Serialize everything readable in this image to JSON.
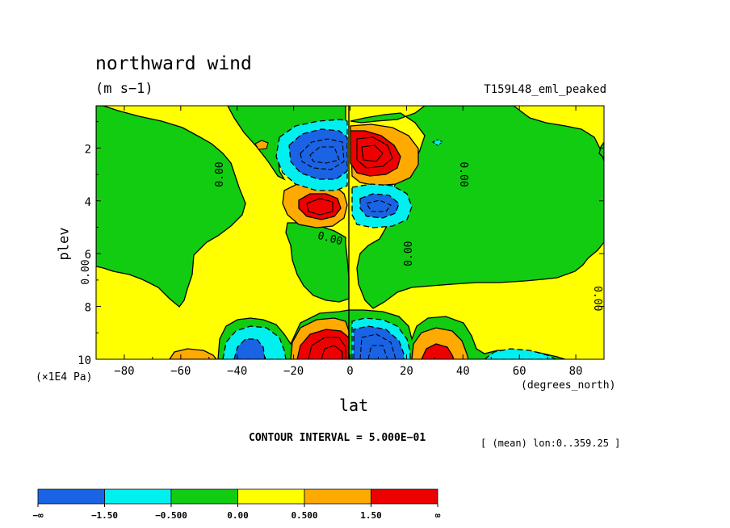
{
  "title": "northward wind",
  "units": "(m s−1)",
  "experiment": "T159L48_eml_peaked",
  "chart_data": {
    "type": "contour",
    "variable": "northward wind",
    "units": "m s-1",
    "xlabel": "lat",
    "xunits": "(degrees_north)",
    "ylabel": "plev",
    "yunits": "(×1E4 Pa)",
    "xlim": [
      -90,
      90
    ],
    "ylim": [
      10,
      0.4
    ],
    "xticks": [
      "−80",
      "−60",
      "−40",
      "−20",
      "0",
      "20",
      "40",
      "60",
      "80"
    ],
    "xtick_values": [
      -80,
      -60,
      -40,
      -20,
      0,
      20,
      40,
      60,
      80
    ],
    "yticks": [
      "2",
      "4",
      "6",
      "8",
      "10"
    ],
    "ytick_values": [
      2,
      4,
      6,
      8,
      10
    ],
    "contour_interval_label": "CONTOUR INTERVAL = 5.000E−01",
    "averaging_label": "[ (mean) lon:0..359.25 ]",
    "contour_labels": [
      "0.00"
    ],
    "levels": [
      "−∞",
      "−1.50",
      "−0.500",
      "0.00",
      "0.500",
      "1.50",
      "∞"
    ],
    "level_colors": [
      "#1a63e4",
      "#00f0f0",
      "#11cc11",
      "#ffff00",
      "#ffaa00",
      "#ee0000"
    ],
    "features": [
      {
        "lat": -8,
        "plev": 1.8,
        "value": "< -1.50",
        "kind": "min"
      },
      {
        "lat": 7,
        "plev": 1.9,
        "value": "> 1.50",
        "kind": "max"
      },
      {
        "lat": -6,
        "plev": 4.0,
        "value": "> 1.50",
        "kind": "max"
      },
      {
        "lat": 7,
        "plev": 4.0,
        "value": "< -1.50",
        "kind": "min"
      },
      {
        "lat": -31,
        "plev": 9.5,
        "value": "< -1.50",
        "kind": "min"
      },
      {
        "lat": -9,
        "plev": 9.4,
        "value": "> 1.50",
        "kind": "max"
      },
      {
        "lat": 8,
        "plev": 9.4,
        "value": "< -1.50",
        "kind": "min"
      },
      {
        "lat": 30,
        "plev": 9.7,
        "value": "> 1.50",
        "kind": "max"
      }
    ]
  }
}
